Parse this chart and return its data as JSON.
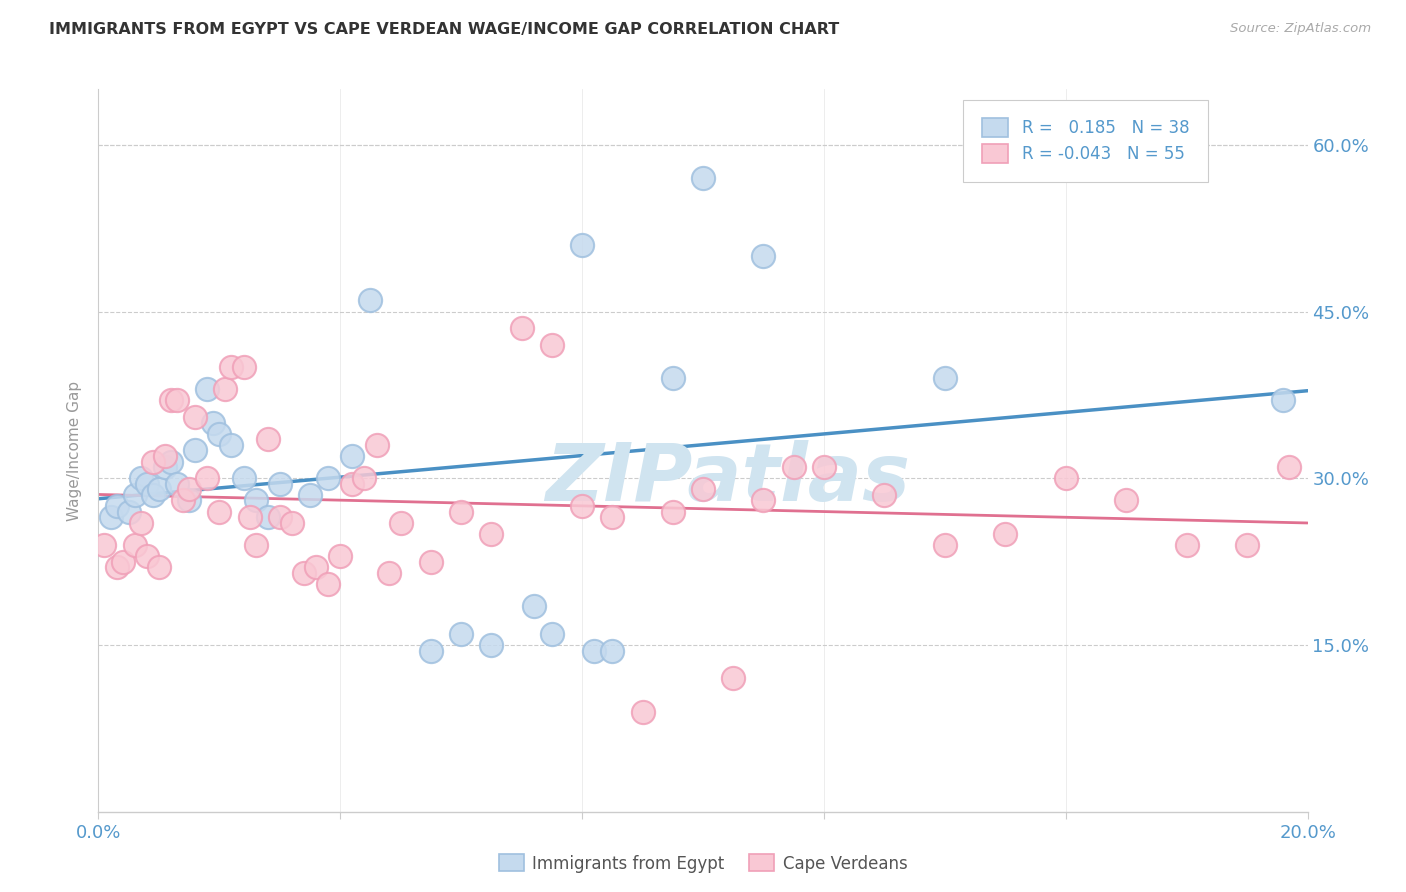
{
  "title": "IMMIGRANTS FROM EGYPT VS CAPE VERDEAN WAGE/INCOME GAP CORRELATION CHART",
  "source": "Source: ZipAtlas.com",
  "ylabel": "Wage/Income Gap",
  "ytick_labels": [
    "15.0%",
    "30.0%",
    "45.0%",
    "60.0%"
  ],
  "ytick_values": [
    0.15,
    0.3,
    0.45,
    0.6
  ],
  "xmin": 0.0,
  "xmax": 0.2,
  "ymin": 0.0,
  "ymax": 0.65,
  "legend_r1_parts": [
    "R = ",
    " 0.185 ",
    " N = ",
    "38"
  ],
  "legend_r2_parts": [
    "R = ",
    "-0.043 ",
    " N = ",
    "55"
  ],
  "color_egypt_fill": "#c5daee",
  "color_egypt_edge": "#a0c0df",
  "color_cape_fill": "#f9c8d4",
  "color_cape_edge": "#f0a0b8",
  "color_egypt_line": "#4a90c4",
  "color_cape_verde_line": "#e07090",
  "egypt_scatter_x": [
    0.002,
    0.003,
    0.005,
    0.006,
    0.007,
    0.008,
    0.009,
    0.01,
    0.011,
    0.012,
    0.013,
    0.015,
    0.016,
    0.018,
    0.019,
    0.02,
    0.022,
    0.024,
    0.026,
    0.028,
    0.03,
    0.035,
    0.038,
    0.042,
    0.045,
    0.055,
    0.06,
    0.065,
    0.072,
    0.075,
    0.08,
    0.082,
    0.085,
    0.095,
    0.1,
    0.11,
    0.14,
    0.196
  ],
  "egypt_scatter_y": [
    0.265,
    0.275,
    0.27,
    0.285,
    0.3,
    0.295,
    0.285,
    0.29,
    0.31,
    0.315,
    0.295,
    0.28,
    0.325,
    0.38,
    0.35,
    0.34,
    0.33,
    0.3,
    0.28,
    0.265,
    0.295,
    0.285,
    0.3,
    0.32,
    0.46,
    0.145,
    0.16,
    0.15,
    0.185,
    0.16,
    0.51,
    0.145,
    0.145,
    0.39,
    0.57,
    0.5,
    0.39,
    0.37
  ],
  "cape_verde_scatter_x": [
    0.001,
    0.003,
    0.004,
    0.006,
    0.007,
    0.008,
    0.009,
    0.01,
    0.011,
    0.012,
    0.013,
    0.014,
    0.015,
    0.016,
    0.018,
    0.02,
    0.021,
    0.022,
    0.024,
    0.025,
    0.026,
    0.028,
    0.03,
    0.032,
    0.034,
    0.036,
    0.038,
    0.04,
    0.042,
    0.044,
    0.046,
    0.048,
    0.05,
    0.055,
    0.06,
    0.065,
    0.07,
    0.075,
    0.08,
    0.085,
    0.09,
    0.095,
    0.1,
    0.105,
    0.11,
    0.115,
    0.12,
    0.13,
    0.14,
    0.15,
    0.16,
    0.17,
    0.18,
    0.19,
    0.197
  ],
  "cape_verde_scatter_y": [
    0.24,
    0.22,
    0.225,
    0.24,
    0.26,
    0.23,
    0.315,
    0.22,
    0.32,
    0.37,
    0.37,
    0.28,
    0.29,
    0.355,
    0.3,
    0.27,
    0.38,
    0.4,
    0.4,
    0.265,
    0.24,
    0.335,
    0.265,
    0.26,
    0.215,
    0.22,
    0.205,
    0.23,
    0.295,
    0.3,
    0.33,
    0.215,
    0.26,
    0.225,
    0.27,
    0.25,
    0.435,
    0.42,
    0.275,
    0.265,
    0.09,
    0.27,
    0.29,
    0.12,
    0.28,
    0.31,
    0.31,
    0.285,
    0.24,
    0.25,
    0.3,
    0.28,
    0.24,
    0.24,
    0.31
  ],
  "background_color": "#ffffff",
  "grid_color": "#cccccc",
  "title_color": "#333333",
  "axis_color": "#5599cc",
  "watermark_text": "ZIPatlas",
  "watermark_color": "#d0e4f0"
}
